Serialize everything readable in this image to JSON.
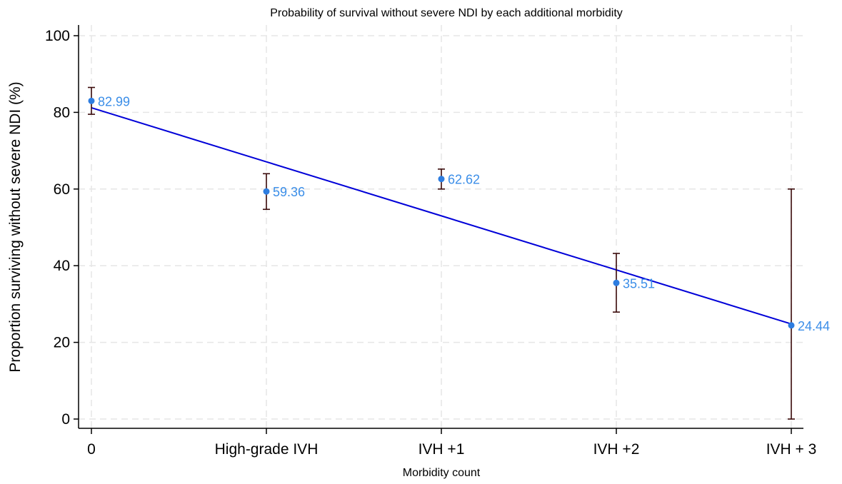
{
  "chart_data": {
    "type": "scatter",
    "title": "Probability of survival without severe NDI by each additional morbidity",
    "xlabel": "Morbidity count",
    "ylabel": "Proportion surviving without severe NDI (%)",
    "categories": [
      "0",
      "High-grade IVH",
      "IVH +1",
      "IVH +2",
      "IVH + 3"
    ],
    "y_ticks": [
      0,
      20,
      40,
      60,
      80,
      100
    ],
    "ylim": [
      0,
      100
    ],
    "grid": true,
    "series": [
      {
        "type": "scatter",
        "values": [
          82.99,
          59.36,
          62.62,
          35.51,
          24.44
        ],
        "labels": [
          "82.99",
          "59.36",
          "62.62",
          "35.51",
          "24.44"
        ],
        "ci_low": [
          79.5,
          54.7,
          60.0,
          27.9,
          0.0
        ],
        "ci_high": [
          86.5,
          64.0,
          65.2,
          43.2,
          60.0
        ]
      },
      {
        "type": "line",
        "values": [
          81.2,
          67.1,
          53.0,
          38.9,
          24.8
        ]
      }
    ],
    "colors": {
      "points": "#2e7de0",
      "labels": "#3b8ee8",
      "fit_line": "#0000d8",
      "error_bars": "#3a0a0a"
    }
  }
}
